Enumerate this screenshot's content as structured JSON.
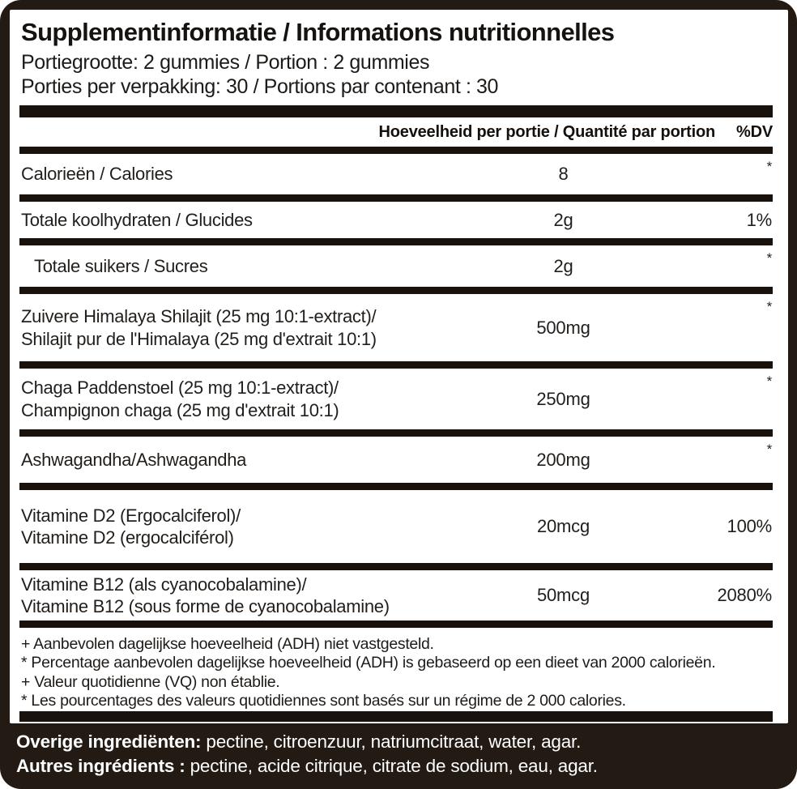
{
  "label": {
    "title": "Supplementinformatie / Informations nutritionnelles",
    "serving_size": "Portiegrootte: 2 gummies / Portion : 2 gummies",
    "servings_per_container": "Porties per verpakking: 30 / Portions par contenant : 30",
    "table": {
      "header": {
        "amount": "Hoeveelheid per portie / Quantité par portion",
        "dv": "%DV"
      },
      "rows": [
        {
          "name": "Calorieën / Calories",
          "amount": "8",
          "dv": "*"
        },
        {
          "name": "Totale koolhydraten / Glucides",
          "amount": "2g",
          "dv": "1%"
        },
        {
          "name": "Totale suikers / Sucres",
          "amount": "2g",
          "dv": "*"
        },
        {
          "name": "Zuivere Himalaya Shilajit (25 mg 10:1-extract)/",
          "name2": "Shilajit pur de l'Himalaya (25 mg d'extrait 10:1)",
          "amount": "500mg",
          "dv": "*"
        },
        {
          "name": "Chaga Paddenstoel (25 mg 10:1-extract)/",
          "name2": "Champignon chaga (25 mg d'extrait 10:1)",
          "amount": "250mg",
          "dv": "*"
        },
        {
          "name": "Ashwagandha/Ashwagandha",
          "amount": "200mg",
          "dv": "*"
        },
        {
          "name": "Vitamine D2 (Ergocalciferol)/",
          "name2": "Vitamine D2 (ergocalciférol)",
          "amount": "20mcg",
          "dv": "100%"
        },
        {
          "name": "Vitamine B12 (als cyanocobalamine)/",
          "name2": "Vitamine B12 (sous forme de cyanocobalamine)",
          "amount": "50mcg",
          "dv": "2080%"
        }
      ]
    },
    "footnotes": [
      "+ Aanbevolen dagelijkse hoeveelheid (ADH) niet vastgesteld.",
      "* Percentage aanbevolen dagelijkse hoeveelheid (ADH) is gebaseerd op een dieet van 2000 calorieën.",
      "+ Valeur quotidienne (VQ) non établie.",
      "* Les pourcentages des valeurs quotidiennes sont basés sur un régime de 2 000 calories."
    ],
    "other_ingredients": [
      {
        "label": "Overige ingrediënten:",
        "text": " pectine, citroenzuur, natriumcitraat, water, agar."
      },
      {
        "label": "Autres ingrédients :",
        "text": " pectine, acide citrique, citrate de sodium, eau, agar."
      }
    ],
    "colors": {
      "frame": "#231a14",
      "bar": "#19110b",
      "panel": "#ffffff",
      "ingredients_text": "#ffffff"
    }
  }
}
